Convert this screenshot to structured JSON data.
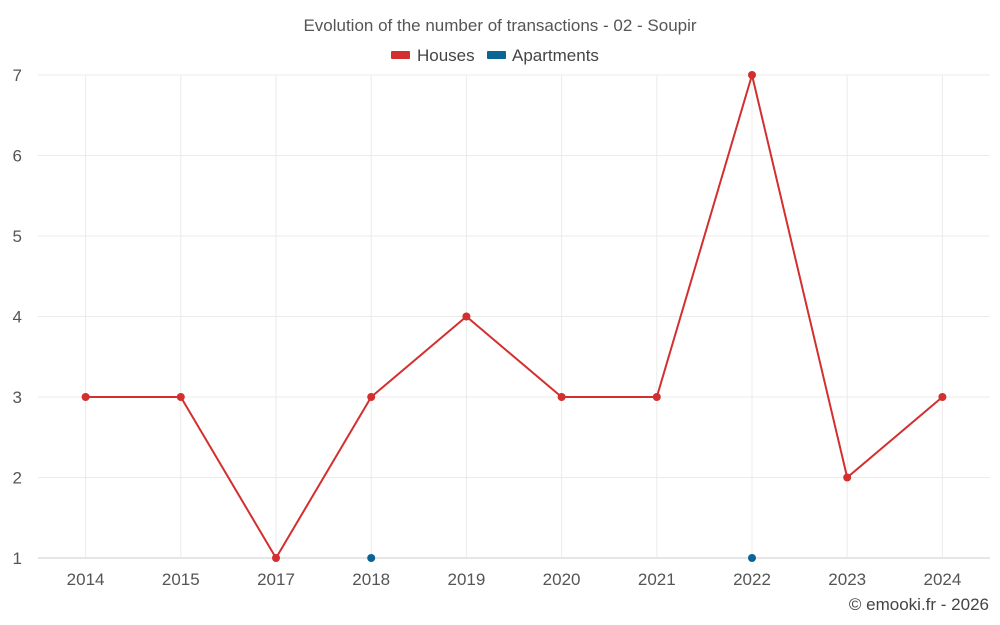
{
  "chart_data": {
    "type": "line",
    "title": "Evolution of the number of transactions - 02 - Soupir",
    "categories": [
      "2014",
      "2015",
      "2017",
      "2018",
      "2019",
      "2020",
      "2021",
      "2022",
      "2023",
      "2024"
    ],
    "ylim": [
      1,
      7
    ],
    "yticks": [
      "1",
      "2",
      "3",
      "4",
      "5",
      "6",
      "7"
    ],
    "grid": true,
    "legend_position": "top-center",
    "series": [
      {
        "name": "Houses",
        "color": "#d32f2f",
        "values": [
          3,
          3,
          1,
          3,
          4,
          3,
          3,
          7,
          2,
          3
        ],
        "line": true
      },
      {
        "name": "Apartments",
        "color": "#0b6496",
        "values": [
          null,
          null,
          null,
          1,
          null,
          null,
          null,
          1,
          null,
          null
        ],
        "line": false
      }
    ]
  },
  "credit": "© emooki.fr - 2026"
}
